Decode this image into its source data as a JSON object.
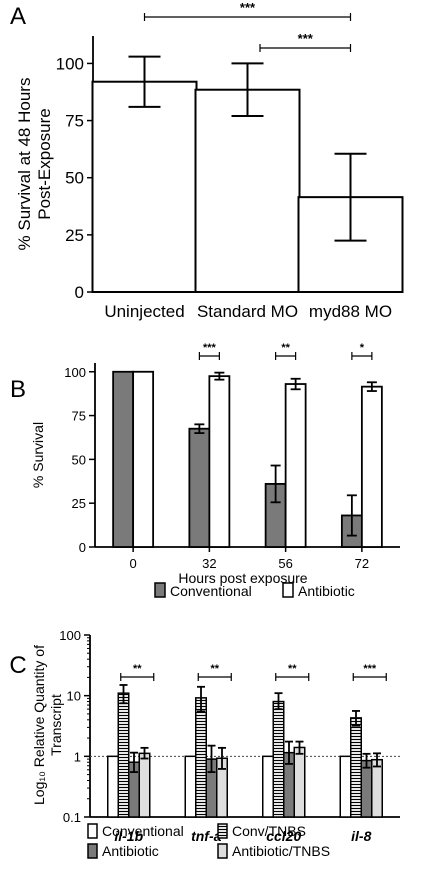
{
  "chart_data": [
    {
      "panel_letter": "A",
      "type": "bar",
      "categories": [
        "Uninjected",
        "Standard MO",
        "myd88 MO"
      ],
      "values": [
        92,
        88.5,
        41.5
      ],
      "error": [
        11,
        11.5,
        19
      ],
      "ylabel_lines": [
        "% Survival at 48 Hours",
        "Post-Exposure"
      ],
      "ylim": [
        0,
        112
      ],
      "yticks": [
        "0",
        "25",
        "50",
        "75",
        "100"
      ],
      "significance": [
        {
          "from": 0,
          "to": 2,
          "label": "***"
        },
        {
          "from": 1,
          "to": 2,
          "label": "***"
        }
      ]
    },
    {
      "panel_letter": "B",
      "type": "bar",
      "categories": [
        "0",
        "32",
        "56",
        "72"
      ],
      "series": [
        {
          "name": "Conventional",
          "values": [
            100,
            67.5,
            36,
            18
          ],
          "error": [
            0,
            2.5,
            10.5,
            11.5
          ]
        },
        {
          "name": "Antibiotic",
          "values": [
            100,
            97.5,
            93,
            91.5
          ],
          "error": [
            0,
            2,
            3,
            2.5
          ]
        }
      ],
      "xlabel": "Hours post exposure",
      "ylabel": "% Survival",
      "ylim": [
        0,
        105
      ],
      "yticks": [
        "0",
        "25",
        "50",
        "75",
        "100"
      ],
      "significance": [
        {
          "category": 1,
          "label": "***"
        },
        {
          "category": 2,
          "label": "**"
        },
        {
          "category": 3,
          "label": "*"
        }
      ]
    },
    {
      "panel_letter": "C",
      "type": "bar",
      "yscale": "log",
      "categories": [
        "il-1b",
        "tnf-a",
        "ccl20",
        "il-8"
      ],
      "series": [
        {
          "name": "Conventional",
          "values": [
            1,
            1,
            1,
            1
          ],
          "error_low": [
            1,
            1,
            1,
            1
          ],
          "error_high": [
            1,
            1,
            1,
            1
          ]
        },
        {
          "name": "Conv/TNBS",
          "values": [
            11,
            9.2,
            8,
            4.3
          ],
          "error_low": [
            7.5,
            5.5,
            6,
            3.2
          ],
          "error_high": [
            15,
            14,
            11,
            5.6
          ]
        },
        {
          "name": "Antibiotic",
          "values": [
            0.8,
            0.9,
            1.15,
            0.85
          ],
          "error_low": [
            0.55,
            0.55,
            0.75,
            0.65
          ],
          "error_high": [
            1.15,
            1.5,
            1.75,
            1.1
          ]
        },
        {
          "name": "Antibiotic/TNBS",
          "values": [
            1.12,
            0.93,
            1.4,
            0.88
          ],
          "error_low": [
            0.92,
            0.62,
            1.1,
            0.68
          ],
          "error_high": [
            1.38,
            1.38,
            1.75,
            1.12
          ]
        }
      ],
      "ylabel": "Log₁₀ Relative Quantity of Transcript",
      "ylabel_lines": [
        "Log₁₀ Relative Quantity of",
        "Transcript"
      ],
      "ylim": [
        0.1,
        100
      ],
      "yticks": [
        "0.1",
        "1",
        "10",
        "100"
      ],
      "reference_line": 1,
      "significance": [
        {
          "category": 0,
          "label": "**"
        },
        {
          "category": 1,
          "label": "**"
        },
        {
          "category": 2,
          "label": "**"
        },
        {
          "category": 3,
          "label": "***"
        }
      ]
    }
  ],
  "fills": {
    "white": "#ffffff",
    "gray": "#7a7a7a",
    "light": "#dedede",
    "stroke": "#000000"
  }
}
